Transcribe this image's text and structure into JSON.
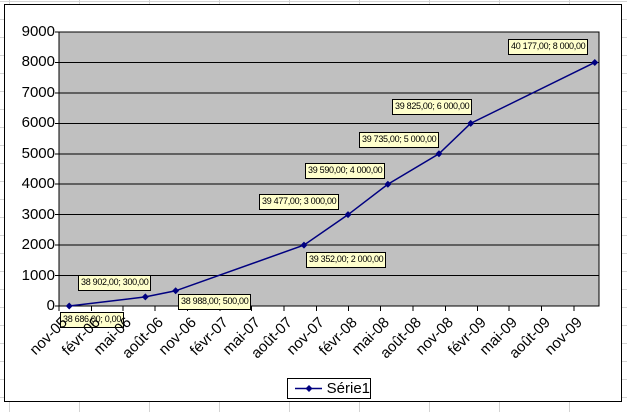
{
  "chart_data": {
    "type": "line",
    "title": "",
    "series": [
      {
        "name": "Série1",
        "x": [
          38686,
          38902,
          38988,
          39352,
          39477,
          39590,
          39735,
          39825,
          40177
        ],
        "y": [
          0,
          300,
          500,
          2000,
          3000,
          4000,
          5000,
          6000,
          8000
        ],
        "point_labels": [
          "38 686,00; 0,00",
          "38 902,00; 300,00",
          "38 988,00; 500,00",
          "39 352,00; 2 000,00",
          "39 477,00; 3 000,00",
          "39 590,00; 4 000,00",
          "39 735,00; 5 000,00",
          "39 825,00; 6 000,00",
          "40 177,00; 8 000,00"
        ],
        "color": "#000080",
        "marker": "diamond"
      }
    ],
    "x_tick_labels": [
      "nov-05",
      "févr-06",
      "mai-06",
      "août-06",
      "nov-06",
      "févr-07",
      "mai-07",
      "août-07",
      "nov-07",
      "févr-08",
      "mai-08",
      "août-08",
      "nov-08",
      "févr-09",
      "mai-09",
      "août-09",
      "nov-09"
    ],
    "y_tick_labels": [
      "0",
      "1000",
      "2000",
      "3000",
      "4000",
      "5000",
      "6000",
      "7000",
      "8000",
      "9000"
    ],
    "ylim": [
      0,
      9000
    ],
    "grid": true,
    "legend": "Série1",
    "legend_position": "bottom",
    "plot_background": "#C0C0C0",
    "gridline_color": "#000000",
    "data_label_background": "#FFFFCC"
  }
}
